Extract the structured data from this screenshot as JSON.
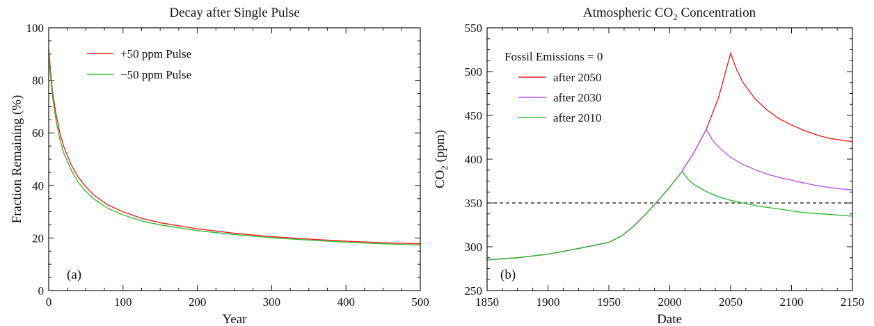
{
  "chart_data": [
    {
      "type": "line",
      "title": "Decay after Single Pulse",
      "xlabel": "Year",
      "ylabel": "Fraction Remaining (%)",
      "xlim": [
        0,
        500
      ],
      "ylim": [
        0,
        100
      ],
      "xticks": [
        0,
        100,
        200,
        300,
        400,
        500
      ],
      "yticks": [
        0,
        20,
        40,
        60,
        80,
        100
      ],
      "panel_label": "(a)",
      "legend_position": "top-left",
      "grid": false,
      "series": [
        {
          "name": "+50 ppm Pulse",
          "color": "#ee2222",
          "x": [
            0,
            2,
            5,
            10,
            15,
            20,
            30,
            40,
            50,
            60,
            80,
            100,
            125,
            150,
            200,
            250,
            300,
            350,
            400,
            450,
            500
          ],
          "y": [
            92,
            85,
            76,
            67,
            60,
            55,
            48,
            43,
            39.5,
            36.5,
            32.5,
            30,
            27.5,
            25.8,
            23.5,
            21.8,
            20.5,
            19.6,
            18.8,
            18.2,
            17.8
          ]
        },
        {
          "name": "−50 ppm Pulse",
          "color": "#33bb33",
          "x": [
            0,
            2,
            5,
            10,
            15,
            20,
            30,
            40,
            50,
            60,
            80,
            100,
            125,
            150,
            200,
            250,
            300,
            350,
            400,
            450,
            500
          ],
          "y": [
            90,
            83,
            74,
            64.5,
            57.5,
            52.5,
            46,
            41,
            37.8,
            35,
            31.2,
            28.8,
            26.5,
            25,
            22.8,
            21.3,
            20.1,
            19.2,
            18.4,
            17.8,
            17.3
          ]
        }
      ]
    },
    {
      "type": "line",
      "title": "Atmospheric CO",
      "title_subscript": "2",
      "title_suffix": " Concentration",
      "xlabel": "Date",
      "ylabel": "CO",
      "ylabel_subscript": "2",
      "ylabel_suffix": " (ppm)",
      "xlim": [
        1850,
        2150
      ],
      "ylim": [
        250,
        550
      ],
      "xticks": [
        1850,
        1900,
        1950,
        2000,
        2050,
        2100,
        2150
      ],
      "yticks": [
        250,
        300,
        350,
        400,
        450,
        500,
        550
      ],
      "panel_label": "(b)",
      "legend_title": "Fossil Emissions = 0",
      "legend_position": "top-left",
      "reference_line": 350,
      "grid": false,
      "series": [
        {
          "name": "after 2050",
          "color": "#ee2222",
          "x": [
            1850,
            1875,
            1900,
            1925,
            1950,
            1960,
            1970,
            1980,
            1990,
            2000,
            2010,
            2020,
            2030,
            2040,
            2050,
            2055,
            2060,
            2070,
            2080,
            2090,
            2100,
            2110,
            2120,
            2130,
            2140,
            2150
          ],
          "y": [
            285,
            287.5,
            291.5,
            298,
            305,
            312,
            323,
            337,
            352,
            368,
            386,
            408,
            434,
            470,
            521,
            502,
            488,
            469,
            456,
            446,
            439,
            433,
            428,
            424,
            422,
            420
          ]
        },
        {
          "name": "after 2030",
          "color": "#bb55ee",
          "x": [
            1850,
            1875,
            1900,
            1925,
            1950,
            1960,
            1970,
            1980,
            1990,
            2000,
            2010,
            2020,
            2030,
            2035,
            2040,
            2050,
            2060,
            2070,
            2080,
            2090,
            2100,
            2110,
            2120,
            2130,
            2140,
            2150
          ],
          "y": [
            285,
            287.5,
            291.5,
            298,
            305,
            312,
            323,
            337,
            352,
            368,
            386,
            408,
            434,
            422,
            414,
            402,
            394,
            388,
            383,
            379,
            376,
            373,
            370,
            368,
            366,
            365
          ]
        },
        {
          "name": "after 2010",
          "color": "#33bb33",
          "x": [
            1850,
            1875,
            1900,
            1925,
            1950,
            1960,
            1970,
            1980,
            1990,
            2000,
            2010,
            2015,
            2020,
            2030,
            2040,
            2050,
            2060,
            2070,
            2080,
            2090,
            2100,
            2110,
            2120,
            2130,
            2140,
            2150
          ],
          "y": [
            285,
            287.5,
            291.5,
            298,
            305,
            312,
            323,
            337,
            352,
            368,
            386,
            377,
            371,
            363,
            357,
            353,
            350,
            347,
            345,
            343,
            341,
            339,
            338,
            337,
            336,
            335
          ]
        }
      ]
    }
  ]
}
